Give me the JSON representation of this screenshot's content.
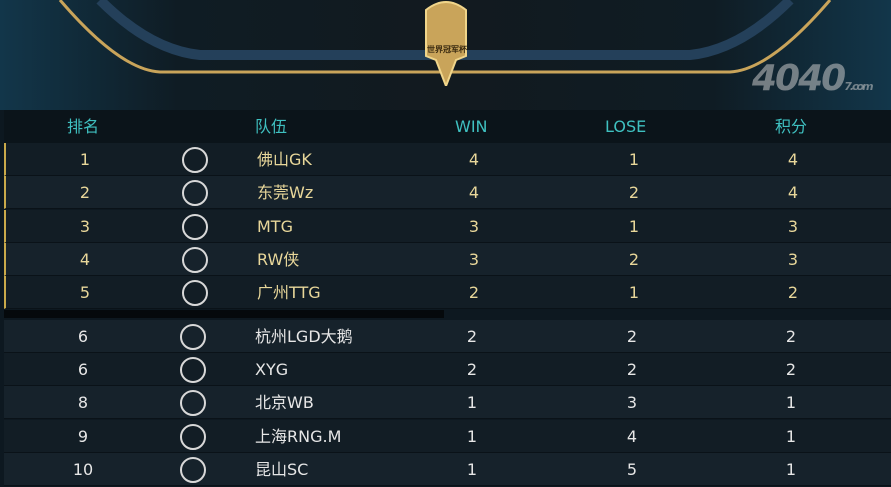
{
  "banner": {
    "crest_text": "世界冠军杯"
  },
  "columns": {
    "rank": "排名",
    "team": "队伍",
    "win": "WIN",
    "lose": "LOSE",
    "points": "积分"
  },
  "colors": {
    "header_text": "#3fc0c0",
    "top_text": "#e8d79a",
    "normal_text": "#e6e6e6",
    "accent": "#c9a94a"
  },
  "rows": [
    {
      "rank": "1",
      "logo": "gk-logo",
      "team": "佛山GK",
      "win": "4",
      "lose": "1",
      "points": "4"
    },
    {
      "rank": "2",
      "logo": "wz-logo",
      "team": "东莞Wz",
      "win": "4",
      "lose": "2",
      "points": "4"
    },
    {
      "rank": "3",
      "logo": "mtg-logo",
      "team": "MTG",
      "win": "3",
      "lose": "1",
      "points": "3"
    },
    {
      "rank": "4",
      "logo": "rw-logo",
      "team": "RW侠",
      "win": "3",
      "lose": "2",
      "points": "3"
    },
    {
      "rank": "5",
      "logo": "ttg-logo",
      "team": "广州TTG",
      "win": "2",
      "lose": "1",
      "points": "2"
    },
    {
      "rank": "6",
      "logo": "lgd-logo",
      "team": "杭州LGD大鹅",
      "win": "2",
      "lose": "2",
      "points": "2"
    },
    {
      "rank": "6",
      "logo": "xyg-logo",
      "team": "XYG",
      "win": "2",
      "lose": "2",
      "points": "2"
    },
    {
      "rank": "8",
      "logo": "wb-logo",
      "team": "北京WB",
      "win": "1",
      "lose": "3",
      "points": "1"
    },
    {
      "rank": "9",
      "logo": "rng-logo",
      "team": "上海RNG.M",
      "win": "1",
      "lose": "4",
      "points": "1"
    },
    {
      "rank": "10",
      "logo": "sc-logo",
      "team": "昆山SC",
      "win": "1",
      "lose": "5",
      "points": "1"
    }
  ],
  "watermark": {
    "main": "4040",
    "suffix": "7.com"
  }
}
